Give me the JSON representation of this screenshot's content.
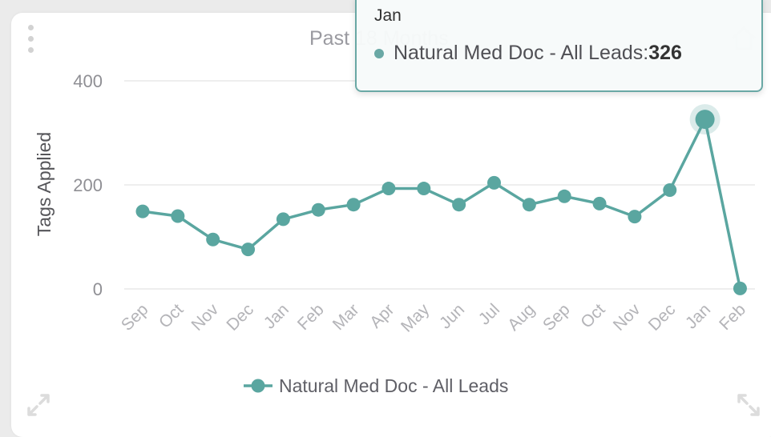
{
  "colors": {
    "series": "#5aa6a0",
    "grid": "#e9e9e9",
    "axis_text": "#8f8f94",
    "card": "#ffffff"
  },
  "icons": [
    "drag-handle-icon",
    "home-icon",
    "expand-icon"
  ],
  "chart_data": {
    "type": "line",
    "title": "Past 18 Months",
    "xlabel": "",
    "ylabel": "Tags Applied",
    "categories": [
      "Sep",
      "Oct",
      "Nov",
      "Dec",
      "Jan",
      "Feb",
      "Mar",
      "Apr",
      "May",
      "Jun",
      "Jul",
      "Aug",
      "Sep",
      "Oct",
      "Nov",
      "Dec",
      "Jan",
      "Feb"
    ],
    "series": [
      {
        "name": "Natural Med Doc - All Leads",
        "values": [
          149,
          140,
          95,
          76,
          134,
          152,
          162,
          193,
          193,
          162,
          204,
          162,
          178,
          164,
          139,
          190,
          326,
          1
        ]
      }
    ],
    "yticks": [
      0,
      200,
      400
    ],
    "ylim": [
      0,
      400
    ],
    "grid": true,
    "legend": "bottom-center",
    "tooltip": {
      "category": "Jan",
      "series": "Natural Med Doc - All Leads",
      "label": "Natural Med Doc - All Leads: ",
      "value": "326"
    }
  }
}
